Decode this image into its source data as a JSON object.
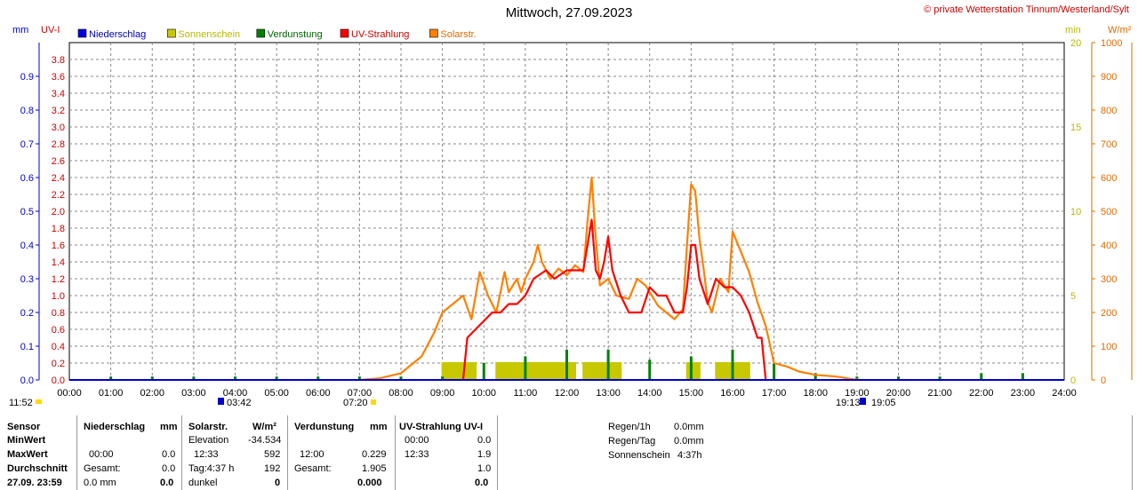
{
  "header": {
    "title": "Mittwoch, 27.09.2023",
    "copyright": "© private Wetterstation Tinnum/Westerland/Sylt"
  },
  "legend": [
    {
      "label": "Niederschlag",
      "color": "#0000e0"
    },
    {
      "label": "Sonnenschein",
      "color": "#c8c800"
    },
    {
      "label": "Verdunstung",
      "color": "#008000"
    },
    {
      "label": "UV-Strahlung",
      "color": "#ff0000"
    },
    {
      "label": "Solarstr.",
      "color": "#ff8000"
    }
  ],
  "axes": {
    "left_mm": {
      "label": "mm",
      "ticks": [
        "0.0",
        "0.1",
        "0.2",
        "0.3",
        "0.4",
        "0.5",
        "0.6",
        "0.7",
        "0.8",
        "0.9"
      ]
    },
    "left_uvi": {
      "label": "UV-I",
      "ticks": [
        "0.0",
        "0.2",
        "0.4",
        "0.6",
        "0.8",
        "1.0",
        "1.2",
        "1.4",
        "1.6",
        "1.8",
        "2.0",
        "2.2",
        "2.4",
        "2.6",
        "2.8",
        "3.0",
        "3.2",
        "3.4",
        "3.6",
        "3.8"
      ]
    },
    "right_min": {
      "label": "min",
      "ticks": [
        "0",
        "5",
        "10",
        "15",
        "20"
      ]
    },
    "right_wm2": {
      "label": "W/m²",
      "ticks": [
        "0",
        "100",
        "200",
        "300",
        "400",
        "500",
        "600",
        "700",
        "800",
        "900",
        "1000"
      ]
    },
    "x": {
      "ticks": [
        "00:00",
        "01:00",
        "02:00",
        "03:00",
        "04:00",
        "05:00",
        "06:00",
        "07:00",
        "08:00",
        "09:00",
        "10:00",
        "11:00",
        "12:00",
        "13:00",
        "14:00",
        "15:00",
        "16:00",
        "17:00",
        "18:00",
        "19:00",
        "20:00",
        "21:00",
        "22:00",
        "23:00",
        "24:00"
      ]
    }
  },
  "astro": {
    "daylength": "11:52",
    "moonset": "03:42",
    "sunrise": "07:20",
    "moonrise": "19:13",
    "sunset": "19:05"
  },
  "chart_data": {
    "type": "area",
    "x_unit": "hour of day",
    "xlim": [
      0,
      24
    ],
    "solar_wm2": [
      [
        7.0,
        0
      ],
      [
        7.5,
        5
      ],
      [
        8.0,
        20
      ],
      [
        8.5,
        70
      ],
      [
        8.8,
        140
      ],
      [
        9.0,
        200
      ],
      [
        9.3,
        230
      ],
      [
        9.5,
        250
      ],
      [
        9.7,
        180
      ],
      [
        9.9,
        320
      ],
      [
        10.1,
        250
      ],
      [
        10.3,
        200
      ],
      [
        10.5,
        320
      ],
      [
        10.6,
        260
      ],
      [
        10.8,
        300
      ],
      [
        10.9,
        260
      ],
      [
        11.0,
        300
      ],
      [
        11.2,
        350
      ],
      [
        11.3,
        400
      ],
      [
        11.4,
        350
      ],
      [
        11.6,
        300
      ],
      [
        11.8,
        330
      ],
      [
        12.0,
        310
      ],
      [
        12.2,
        340
      ],
      [
        12.4,
        320
      ],
      [
        12.5,
        470
      ],
      [
        12.6,
        600
      ],
      [
        12.7,
        420
      ],
      [
        12.8,
        280
      ],
      [
        13.0,
        300
      ],
      [
        13.2,
        250
      ],
      [
        13.5,
        240
      ],
      [
        13.7,
        300
      ],
      [
        13.9,
        280
      ],
      [
        14.0,
        260
      ],
      [
        14.2,
        220
      ],
      [
        14.4,
        200
      ],
      [
        14.6,
        180
      ],
      [
        14.8,
        210
      ],
      [
        14.9,
        400
      ],
      [
        15.0,
        580
      ],
      [
        15.1,
        560
      ],
      [
        15.2,
        420
      ],
      [
        15.3,
        330
      ],
      [
        15.4,
        230
      ],
      [
        15.5,
        200
      ],
      [
        15.7,
        300
      ],
      [
        15.9,
        260
      ],
      [
        16.0,
        440
      ],
      [
        16.2,
        380
      ],
      [
        16.4,
        320
      ],
      [
        16.6,
        230
      ],
      [
        16.8,
        160
      ],
      [
        17.0,
        50
      ],
      [
        17.3,
        40
      ],
      [
        17.6,
        25
      ],
      [
        18.0,
        15
      ],
      [
        18.5,
        10
      ],
      [
        18.9,
        2
      ],
      [
        19.1,
        0
      ]
    ],
    "uv_index": [
      [
        9.5,
        0.0
      ],
      [
        9.6,
        0.5
      ],
      [
        9.8,
        0.6
      ],
      [
        10.0,
        0.7
      ],
      [
        10.2,
        0.8
      ],
      [
        10.4,
        0.8
      ],
      [
        10.6,
        0.9
      ],
      [
        10.8,
        0.9
      ],
      [
        11.0,
        1.0
      ],
      [
        11.2,
        1.2
      ],
      [
        11.5,
        1.3
      ],
      [
        11.7,
        1.2
      ],
      [
        12.0,
        1.3
      ],
      [
        12.2,
        1.3
      ],
      [
        12.4,
        1.3
      ],
      [
        12.5,
        1.6
      ],
      [
        12.6,
        1.9
      ],
      [
        12.7,
        1.3
      ],
      [
        12.8,
        1.2
      ],
      [
        12.9,
        1.4
      ],
      [
        13.0,
        1.7
      ],
      [
        13.1,
        1.3
      ],
      [
        13.3,
        1.0
      ],
      [
        13.5,
        0.8
      ],
      [
        13.8,
        0.8
      ],
      [
        14.0,
        1.1
      ],
      [
        14.2,
        1.0
      ],
      [
        14.4,
        1.0
      ],
      [
        14.6,
        0.8
      ],
      [
        14.8,
        0.8
      ],
      [
        14.9,
        1.1
      ],
      [
        15.0,
        1.6
      ],
      [
        15.1,
        1.6
      ],
      [
        15.2,
        1.2
      ],
      [
        15.4,
        0.9
      ],
      [
        15.6,
        1.2
      ],
      [
        15.8,
        1.1
      ],
      [
        16.0,
        1.1
      ],
      [
        16.2,
        1.0
      ],
      [
        16.4,
        0.8
      ],
      [
        16.6,
        0.5
      ],
      [
        16.7,
        0.5
      ],
      [
        16.8,
        0.0
      ]
    ],
    "sunshine_min": [
      [
        9.0,
        0.9
      ],
      [
        9.1,
        0.9
      ],
      [
        9.2,
        0.9
      ],
      [
        9.3,
        0.9
      ],
      [
        9.4,
        0.9
      ],
      [
        9.5,
        0.9
      ],
      [
        9.6,
        0.9
      ],
      [
        9.7,
        0.9
      ],
      [
        10.3,
        0.9
      ],
      [
        10.4,
        0.9
      ],
      [
        10.5,
        0.9
      ],
      [
        10.6,
        0.9
      ],
      [
        10.7,
        0.9
      ],
      [
        10.8,
        0.9
      ],
      [
        10.9,
        0.9
      ],
      [
        11.0,
        0.9
      ],
      [
        11.1,
        0.9
      ],
      [
        11.2,
        0.9
      ],
      [
        11.3,
        0.9
      ],
      [
        11.4,
        0.9
      ],
      [
        11.5,
        0.9
      ],
      [
        11.6,
        0.9
      ],
      [
        11.7,
        0.9
      ],
      [
        11.8,
        0.9
      ],
      [
        11.9,
        0.9
      ],
      [
        12.0,
        0.9
      ],
      [
        12.1,
        0.9
      ],
      [
        12.4,
        0.9
      ],
      [
        12.5,
        0.9
      ],
      [
        12.6,
        0.9
      ],
      [
        12.7,
        0.9
      ],
      [
        12.8,
        0.9
      ],
      [
        12.9,
        0.9
      ],
      [
        13.0,
        0.9
      ],
      [
        13.1,
        0.9
      ],
      [
        13.2,
        0.9
      ],
      [
        14.9,
        0.9
      ],
      [
        15.0,
        0.9
      ],
      [
        15.1,
        0.9
      ],
      [
        15.6,
        0.9
      ],
      [
        15.7,
        0.9
      ],
      [
        15.8,
        0.9
      ],
      [
        15.9,
        0.9
      ],
      [
        16.0,
        0.9
      ],
      [
        16.1,
        0.9
      ],
      [
        16.2,
        0.9
      ],
      [
        16.3,
        0.9
      ]
    ],
    "evaporation_mm": [
      [
        1,
        0.01
      ],
      [
        2,
        0.01
      ],
      [
        3,
        0.01
      ],
      [
        4,
        0.01
      ],
      [
        5,
        0.01
      ],
      [
        6,
        0.01
      ],
      [
        7,
        0.01
      ],
      [
        8,
        0.01
      ],
      [
        9,
        0.01
      ],
      [
        10,
        0.05
      ],
      [
        11,
        0.07
      ],
      [
        12,
        0.09
      ],
      [
        13,
        0.09
      ],
      [
        14,
        0.06
      ],
      [
        15,
        0.07
      ],
      [
        16,
        0.09
      ],
      [
        17,
        0.05
      ],
      [
        18,
        0.02
      ],
      [
        19,
        0.01
      ],
      [
        20,
        0.01
      ],
      [
        21,
        0.01
      ],
      [
        22,
        0.02
      ],
      [
        23,
        0.02
      ]
    ]
  },
  "summary": {
    "col_labels": {
      "sensor": "Sensor",
      "min": "MinWert",
      "max": "MaxWert",
      "avg": "Durchschnitt",
      "date": "27.09. 23:59"
    },
    "rain": {
      "header": "Niederschlag",
      "unit": "mm",
      "max_time": "00:00",
      "max_val": "0.0",
      "avg_label": "Gesamt:",
      "avg_val": "0.0",
      "last_text": "0.0 mm",
      "last_val": "0.0"
    },
    "solar": {
      "header": "Solarstr.",
      "unit": "W/m²",
      "min_label": "Elevation",
      "min_val": "-34.534",
      "max_time": "12:33",
      "max_val": "592",
      "avg_label": "Tag:4:37 h",
      "avg_val": "192",
      "last_label": "dunkel",
      "last_val": "0"
    },
    "evap": {
      "header": "Verdunstung",
      "unit": "mm",
      "max_time": "12:00",
      "max_val": "0.229",
      "avg_label": "Gesamt:",
      "avg_val": "1.905",
      "last_val": "0.000"
    },
    "uv": {
      "header": "UV-Strahlung UV-I",
      "min_time": "00:00",
      "min_val": "0.0",
      "max_time": "12:33",
      "max_val": "1.9",
      "avg_val": "1.0",
      "last_val": "0.0"
    },
    "extra": [
      {
        "label": "Regen/1h",
        "value": "0.0mm"
      },
      {
        "label": "Regen/Tag",
        "value": "0.0mm"
      },
      {
        "label": "Sonnenschein",
        "value": "4:37h"
      }
    ]
  }
}
